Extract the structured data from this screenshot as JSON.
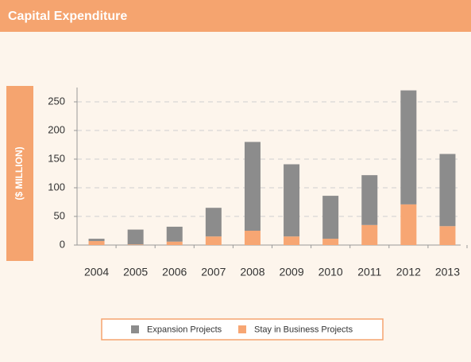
{
  "chart_data": {
    "type": "bar",
    "title": "Capital Expenditure",
    "y_label": "($ MILLION)",
    "categories": [
      "2004",
      "2005",
      "2006",
      "2007",
      "2008",
      "2009",
      "2010",
      "2011",
      "2012",
      "2013"
    ],
    "series": [
      {
        "name": "Expansion Projects",
        "color": "#8c8c8c",
        "values": [
          4,
          26,
          26,
          50,
          155,
          126,
          75,
          87,
          199,
          126
        ]
      },
      {
        "name": "Stay in Business Projects",
        "color": "#f7a673",
        "values": [
          7,
          1,
          6,
          15,
          25,
          15,
          11,
          35,
          71,
          33
        ]
      }
    ],
    "stacked": true,
    "ylim": [
      0,
      275
    ],
    "yticks": [
      0,
      50,
      100,
      150,
      200,
      250
    ],
    "grid": true
  }
}
